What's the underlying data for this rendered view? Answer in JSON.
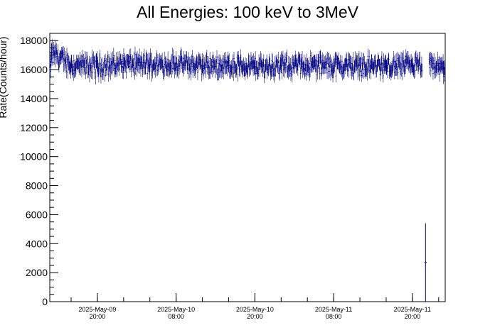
{
  "chart_data": {
    "type": "scatter",
    "title": "All Energies:  100 keV to 3MeV",
    "xlabel": "",
    "ylabel": "Rate(Counts/hour)",
    "x_unit": "time",
    "xlim": [
      "2025-05-09 12:45",
      "2025-05-12 01:00"
    ],
    "ylim": [
      0,
      18500
    ],
    "grid": false,
    "legend": "none",
    "y_ticks": [
      {
        "value": 0,
        "label": "0"
      },
      {
        "value": 2000,
        "label": "2000"
      },
      {
        "value": 4000,
        "label": "4000"
      },
      {
        "value": 6000,
        "label": "6000"
      },
      {
        "value": 8000,
        "label": "8000"
      },
      {
        "value": 10000,
        "label": "10000"
      },
      {
        "value": 12000,
        "label": "12000"
      },
      {
        "value": 14000,
        "label": "14000"
      },
      {
        "value": 16000,
        "label": "16000"
      },
      {
        "value": 18000,
        "label": "18000"
      }
    ],
    "x_ticks": [
      {
        "value": "2025-05-09 20:00",
        "label_date": "2025-May-09",
        "label_time": "20:00"
      },
      {
        "value": "2025-05-10 08:00",
        "label_date": "2025-May-10",
        "label_time": "08:00"
      },
      {
        "value": "2025-05-10 20:00",
        "label_date": "2025-May-10",
        "label_time": "20:00"
      },
      {
        "value": "2025-05-11 08:00",
        "label_date": "2025-May-11",
        "label_time": "08:00"
      },
      {
        "value": "2025-05-11 20:00",
        "label_date": "2025-May-11",
        "label_time": "20:00"
      }
    ],
    "series": [
      {
        "color": "#000080",
        "points": [
          {
            "x": "2025-05-09 13:00",
            "y": 17200,
            "err": 600
          },
          {
            "x": "2025-05-09 16:00",
            "y": 16300,
            "err": 500
          },
          {
            "x": "2025-05-09 20:00",
            "y": 16200,
            "err": 500
          },
          {
            "x": "2025-05-10 00:00",
            "y": 16400,
            "err": 500
          },
          {
            "x": "2025-05-10 04:00",
            "y": 16350,
            "err": 500
          },
          {
            "x": "2025-05-10 08:00",
            "y": 16400,
            "err": 500
          },
          {
            "x": "2025-05-10 12:00",
            "y": 16250,
            "err": 500
          },
          {
            "x": "2025-05-10 16:00",
            "y": 16300,
            "err": 500
          },
          {
            "x": "2025-05-10 20:00",
            "y": 16200,
            "err": 500
          },
          {
            "x": "2025-05-11 00:00",
            "y": 16250,
            "err": 500
          },
          {
            "x": "2025-05-11 04:00",
            "y": 16300,
            "err": 500
          },
          {
            "x": "2025-05-11 08:00",
            "y": 16250,
            "err": 500
          },
          {
            "x": "2025-05-11 12:00",
            "y": 16300,
            "err": 500
          },
          {
            "x": "2025-05-11 16:00",
            "y": 16200,
            "err": 500
          },
          {
            "x": "2025-05-11 20:00",
            "y": 16300,
            "err": 500
          },
          {
            "x": "2025-05-11 22:00",
            "y": 2700,
            "err": 2700
          },
          {
            "x": "2025-05-12 00:45",
            "y": 16100,
            "err": 500
          }
        ]
      }
    ]
  }
}
